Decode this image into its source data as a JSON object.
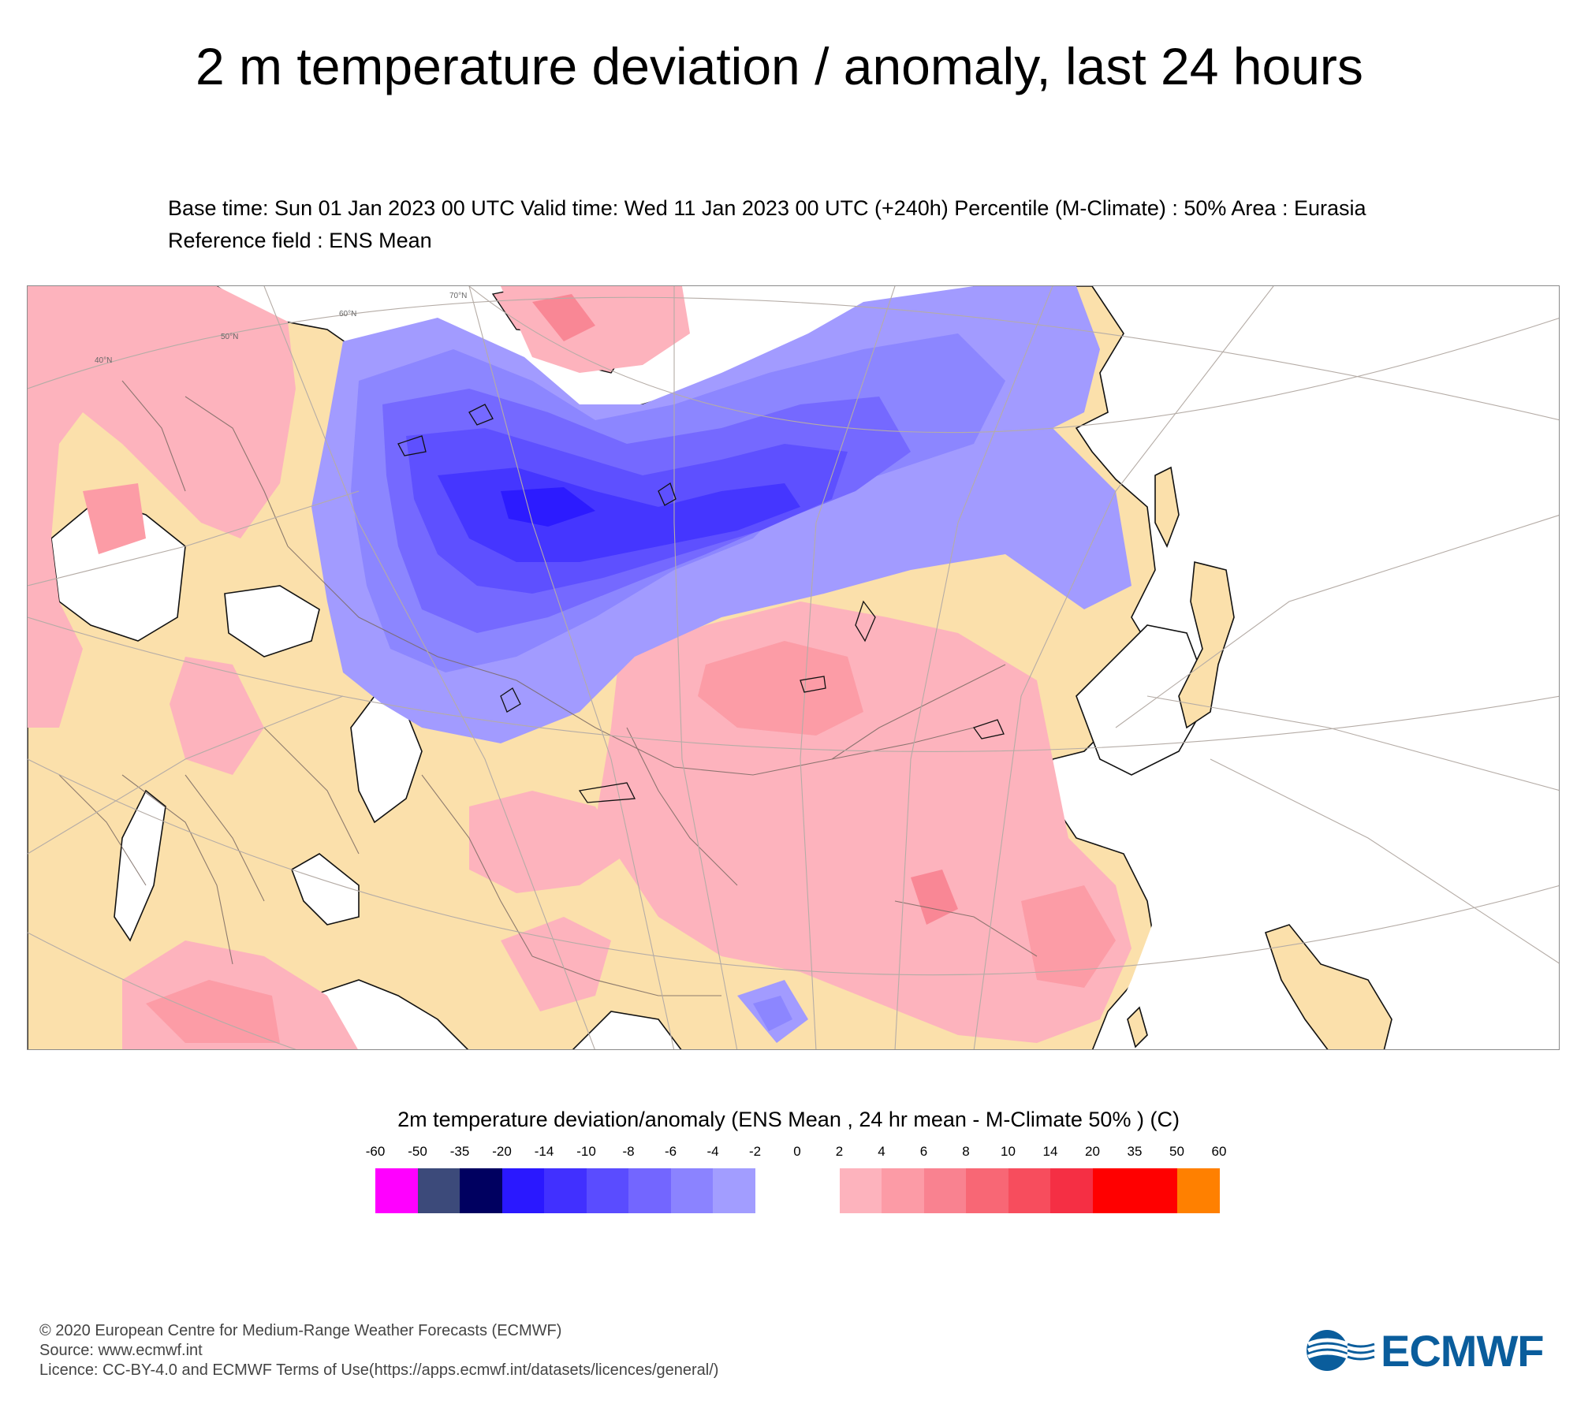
{
  "title": "2 m temperature deviation / anomaly, last 24 hours",
  "subtitle": "Base time: Sun 01 Jan 2023 00 UTC Valid time: Wed 11 Jan 2023 00 UTC (+240h) Percentile (M-Climate) : 50% Area : Eurasia Reference field : ENS Mean",
  "map": {
    "region": "Eurasia",
    "graticule_labels": [
      "70°N",
      "60°N",
      "50°N",
      "40°N"
    ],
    "colors": {
      "land_zero": "#fbe0ab",
      "anomaly_2_4": "#fdb3bd",
      "anomaly_4_6": "#fc9ca6",
      "anomaly_6_8": "#f98795",
      "neg_2": "#a29bff",
      "neg_4": "#8c86ff",
      "neg_6": "#7569ff",
      "neg_8": "#5e50ff",
      "neg_10": "#4536ff",
      "neg_14": "#2c1bff"
    }
  },
  "legend": {
    "title": "2m temperature deviation/anomaly (ENS Mean , 24 hr mean - M-Climate 50% ) (C)",
    "ticks": [
      "-60",
      "-50",
      "-35",
      "-20",
      "-14",
      "-10",
      "-8",
      "-6",
      "-4",
      "-2",
      "0",
      "2",
      "4",
      "6",
      "8",
      "10",
      "14",
      "20",
      "35",
      "50",
      "60"
    ],
    "swatches": [
      {
        "from": "-60",
        "to": "-50",
        "color": "#ff00ff"
      },
      {
        "from": "-50",
        "to": "-35",
        "color": "#3c4a7a"
      },
      {
        "from": "-35",
        "to": "-20",
        "color": "#000060"
      },
      {
        "from": "-20",
        "to": "-14",
        "color": "#2a18ff"
      },
      {
        "from": "-14",
        "to": "-10",
        "color": "#4130ff"
      },
      {
        "from": "-10",
        "to": "-8",
        "color": "#5a4cff"
      },
      {
        "from": "-8",
        "to": "-6",
        "color": "#7366ff"
      },
      {
        "from": "-6",
        "to": "-4",
        "color": "#8b83ff"
      },
      {
        "from": "-4",
        "to": "-2",
        "color": "#a29dff"
      },
      {
        "from": "-2",
        "to": "0",
        "color": "#ffffff"
      },
      {
        "from": "0",
        "to": "2",
        "color": "#ffffff"
      },
      {
        "from": "2",
        "to": "4",
        "color": "#fdb3bd"
      },
      {
        "from": "4",
        "to": "6",
        "color": "#fc9ba6"
      },
      {
        "from": "6",
        "to": "8",
        "color": "#f98290"
      },
      {
        "from": "8",
        "to": "10",
        "color": "#f86775"
      },
      {
        "from": "10",
        "to": "14",
        "color": "#f74d5d"
      },
      {
        "from": "14",
        "to": "20",
        "color": "#f52f44"
      },
      {
        "from": "20",
        "to": "35",
        "color": "#ff0000"
      },
      {
        "from": "35",
        "to": "50",
        "color": "#ff0000"
      },
      {
        "from": "50",
        "to": "60",
        "color": "#ff8000"
      }
    ]
  },
  "footer": {
    "copyright": "© 2020 European Centre for Medium-Range Weather Forecasts (ECMWF)",
    "source": "Source: www.ecmwf.int",
    "licence": "Licence: CC-BY-4.0 and ECMWF Terms of Use(https://apps.ecmwf.int/datasets/licences/general/)"
  },
  "logo": {
    "text": "ECMWF",
    "color": "#0a5d9c",
    "icon": "ecmwf-waves-icon"
  }
}
